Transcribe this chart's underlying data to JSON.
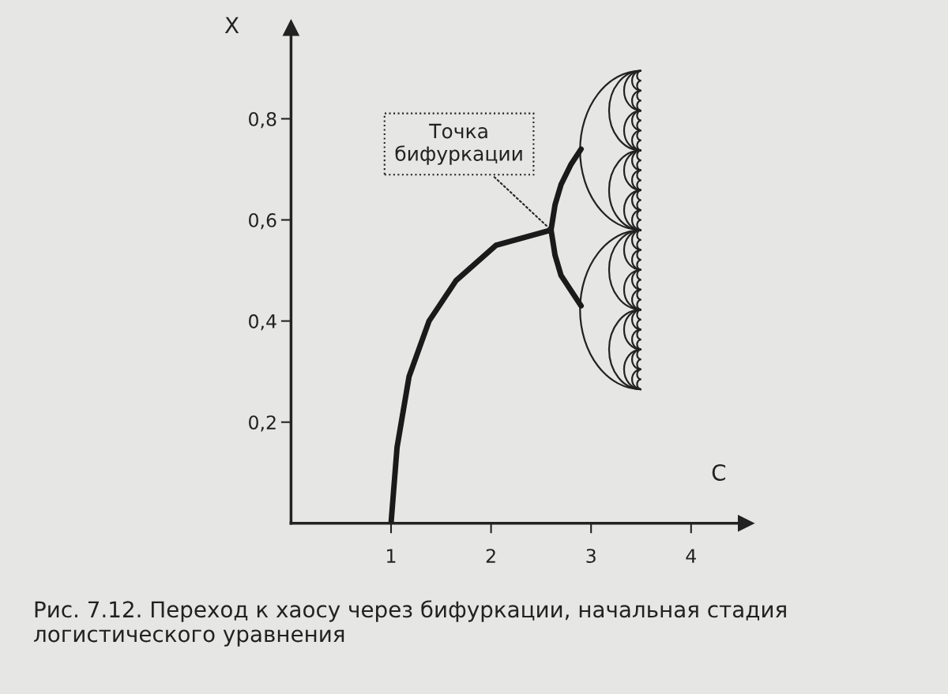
{
  "chart_data": {
    "type": "line",
    "xlabel": "C",
    "ylabel": "X",
    "xlim": [
      0,
      4.55
    ],
    "ylim": [
      0,
      0.98
    ],
    "xticks": [
      1,
      2,
      3,
      4
    ],
    "yticks": [
      {
        "value": 0.2,
        "label": "0,2"
      },
      {
        "value": 0.4,
        "label": "0,4"
      },
      {
        "value": 0.6,
        "label": "0,6"
      },
      {
        "value": 0.8,
        "label": "0,8"
      }
    ],
    "series": [
      {
        "color": "#1a1a1a",
        "x": [
          1.0,
          1.06,
          1.18,
          1.38,
          1.65,
          2.05,
          2.6
        ],
        "values": [
          0.0,
          0.15,
          0.29,
          0.4,
          0.48,
          0.55,
          0.58
        ]
      },
      {
        "color": "#1a1a1a",
        "x": [
          2.9,
          2.8,
          2.7,
          2.64,
          2.6,
          2.64,
          2.7,
          2.8,
          2.9
        ],
        "values": [
          0.74,
          0.71,
          0.67,
          0.63,
          0.58,
          0.53,
          0.49,
          0.46,
          0.43
        ]
      }
    ],
    "annotations": [
      {
        "text": "Точка бифуркации",
        "x": 2.6,
        "y": 0.58
      },
      "Рис. 7.12. Переход к хаосу через бифуркации, начальная стадия логистического уравнения"
    ],
    "grid": false,
    "legend": false,
    "marker": "none",
    "line_style": "solid"
  }
}
